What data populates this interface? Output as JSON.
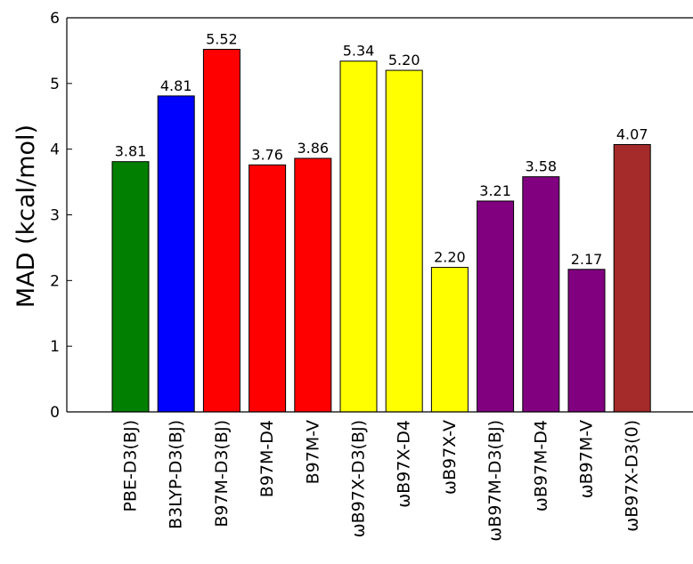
{
  "chart_data": {
    "type": "bar",
    "title": "",
    "xlabel": "",
    "ylabel": "MAD (kcal/mol)",
    "ylim": [
      0,
      6
    ],
    "yticks": [
      "0",
      "1",
      "2",
      "3",
      "4",
      "5",
      "6"
    ],
    "grid": false,
    "categories": [
      "PBE-D3(BJ)",
      "B3LYP-D3(BJ)",
      "B97M-D3(BJ)",
      "B97M-D4",
      "B97M-V",
      "ωB97X-D3(BJ)",
      "ωB97X-D4",
      "ωB97X-V",
      "ωB97M-D3(BJ)",
      "ωB97M-D4",
      "ωB97M-V",
      "ωB97X-D3(0)"
    ],
    "values": [
      3.81,
      4.81,
      5.52,
      3.76,
      3.86,
      5.34,
      5.2,
      2.2,
      3.21,
      3.58,
      2.17,
      4.07
    ],
    "data_labels": [
      "3.81",
      "4.81",
      "5.52",
      "3.76",
      "3.86",
      "5.34",
      "5.20",
      "2.20",
      "3.21",
      "3.58",
      "2.17",
      "4.07"
    ],
    "colors": [
      "#007f00",
      "#0000ff",
      "#ff0000",
      "#ff0000",
      "#ff0000",
      "#ffff00",
      "#ffff00",
      "#ffff00",
      "#800080",
      "#800080",
      "#800080",
      "#a52a2a"
    ]
  }
}
